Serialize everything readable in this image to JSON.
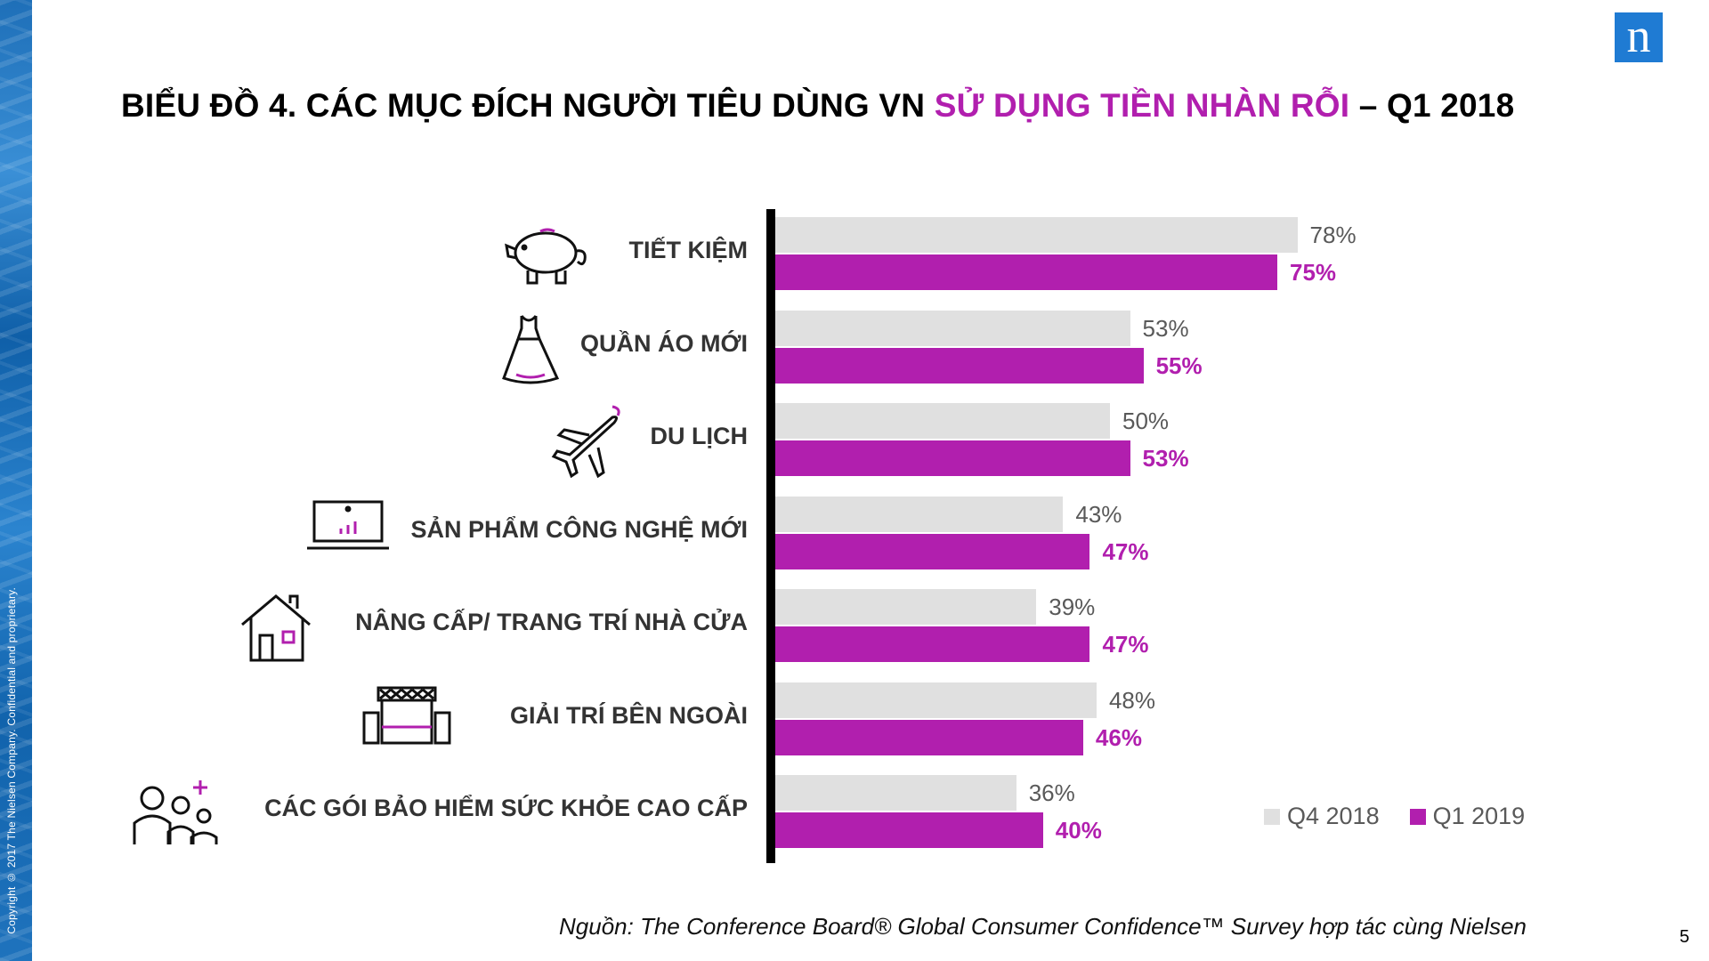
{
  "slide": {
    "title_prefix": "BIỂU ĐỒ 4. CÁC MỤC ĐÍCH NGƯỜI TIÊU DÙNG VN ",
    "title_highlight": "SỬ DỤNG TIỀN NHÀN RỖI",
    "title_suffix": " – Q1 2018",
    "logo_letter": "n",
    "copyright": "Copyright © 2017 The Nielsen Company. Confidential and proprietary.",
    "source": "Nguồn: The Conference Board® Global Consumer Confidence™ Survey hợp tác cùng Nielsen",
    "page_number": "5"
  },
  "colors": {
    "accent": "#b11fae",
    "q4": "#e0e0e0",
    "brand_blue": "#1f7bd3"
  },
  "chart_data": {
    "type": "bar",
    "orientation": "horizontal",
    "categories": [
      "TIẾT KIỆM",
      "QUẦN ÁO MỚI",
      "DU LỊCH",
      "SẢN PHẨM CÔNG NGHỆ MỚI",
      "NÂNG CẤP/ TRANG TRÍ NHÀ CỬA",
      "GIẢI TRÍ BÊN NGOÀI",
      "CÁC GÓI BẢO HIỂM SỨC KHỎE CAO CẤP"
    ],
    "category_icons": [
      "piggy-bank-icon",
      "dress-icon",
      "airplane-icon",
      "laptop-icon",
      "house-icon",
      "stage-icon",
      "family-icon"
    ],
    "series": [
      {
        "name": "Q4 2018",
        "values": [
          78,
          53,
          50,
          43,
          39,
          48,
          36
        ],
        "labels": [
          "78%",
          "53%",
          "50%",
          "43%",
          "39%",
          "48%",
          "36%"
        ]
      },
      {
        "name": "Q1 2019",
        "values": [
          75,
          55,
          53,
          47,
          47,
          46,
          40
        ],
        "labels": [
          "75%",
          "55%",
          "53%",
          "47%",
          "47%",
          "46%",
          "40%"
        ]
      }
    ],
    "xlim": [
      0,
      100
    ],
    "grid": false,
    "legend_position": "bottom-right"
  }
}
